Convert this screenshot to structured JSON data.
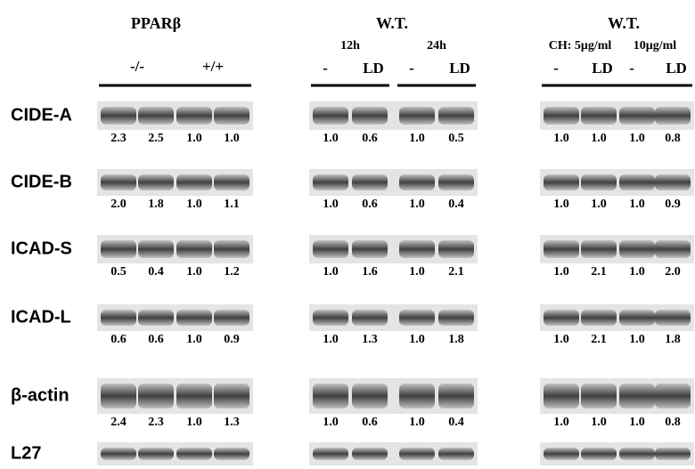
{
  "header": {
    "groups": [
      {
        "title": "PPARβ",
        "lanes": [
          "-/-",
          "+/+"
        ]
      },
      {
        "title": "W.T.",
        "conditions": [
          {
            "label": "12h",
            "lanes": [
              "-",
              "LD"
            ]
          },
          {
            "label": "24h",
            "lanes": [
              "-",
              "LD"
            ]
          }
        ]
      },
      {
        "title": "W.T.",
        "conditions": [
          {
            "label": "CH: 5μg/ml",
            "lanes": [
              "-",
              "LD"
            ]
          },
          {
            "label": "10μg/ml",
            "lanes": [
              "-",
              "LD"
            ]
          }
        ]
      }
    ]
  },
  "rows": [
    {
      "label": "CIDE-A",
      "values": [
        [
          "2.3",
          "2.5",
          "1.0",
          "1.0"
        ],
        [
          "1.0",
          "0.6",
          "1.0",
          "0.5"
        ],
        [
          "1.0",
          "1.0",
          "1.0",
          "0.8"
        ]
      ]
    },
    {
      "label": "CIDE-B",
      "values": [
        [
          "2.0",
          "1.8",
          "1.0",
          "1.1"
        ],
        [
          "1.0",
          "0.6",
          "1.0",
          "0.4"
        ],
        [
          "1.0",
          "1.0",
          "1.0",
          "0.9"
        ]
      ]
    },
    {
      "label": "ICAD-S",
      "values": [
        [
          "0.5",
          "0.4",
          "1.0",
          "1.2"
        ],
        [
          "1.0",
          "1.6",
          "1.0",
          "2.1"
        ],
        [
          "1.0",
          "2.1",
          "1.0",
          "2.0"
        ]
      ]
    },
    {
      "label": "ICAD-L",
      "values": [
        [
          "0.6",
          "0.6",
          "1.0",
          "0.9"
        ],
        [
          "1.0",
          "1.3",
          "1.0",
          "1.8"
        ],
        [
          "1.0",
          "2.1",
          "1.0",
          "1.8"
        ]
      ]
    },
    {
      "label": "β-actin",
      "values": [
        [
          "2.4",
          "2.3",
          "1.0",
          "1.3"
        ],
        [
          "1.0",
          "0.6",
          "1.0",
          "0.4"
        ],
        [
          "1.0",
          "1.0",
          "1.0",
          "0.8"
        ]
      ]
    },
    {
      "label": "L27"
    }
  ]
}
